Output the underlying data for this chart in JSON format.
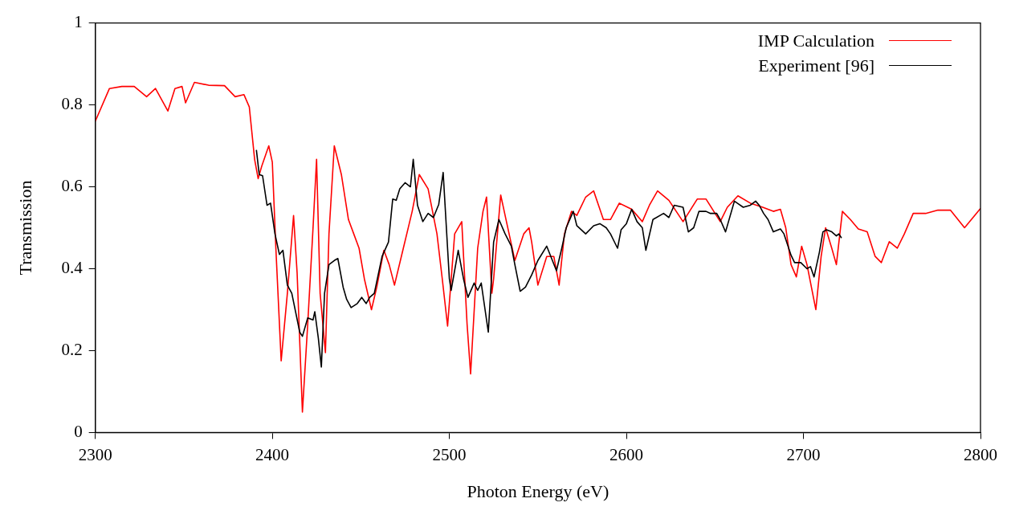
{
  "chart_data": {
    "type": "line",
    "xlabel": "Photon Energy (eV)",
    "ylabel": "Transmission",
    "xlim": [
      2300,
      2800
    ],
    "ylim": [
      0,
      1
    ],
    "xticks": [
      2300,
      2400,
      2500,
      2600,
      2700,
      2800
    ],
    "yticks": [
      0,
      0.2,
      0.4,
      0.6,
      0.8,
      1
    ],
    "grid": false,
    "legend": "top right",
    "marker": "none",
    "line_style": "solid",
    "series": [
      {
        "name": "IMP Calculation",
        "color": "#ff0000",
        "x": [
          2300,
          2308,
          2315,
          2322,
          2329,
          2334,
          2341,
          2345,
          2349,
          2351,
          2356,
          2364,
          2373,
          2379,
          2384,
          2387,
          2390,
          2392,
          2394,
          2398,
          2400,
          2402,
          2405,
          2408.5,
          2412,
          2414,
          2417,
          2420,
          2423,
          2425,
          2427,
          2430,
          2432,
          2435,
          2439,
          2443,
          2446,
          2449,
          2452,
          2456,
          2459,
          2463,
          2466,
          2469,
          2474,
          2479,
          2483,
          2488,
          2493,
          2496,
          2499,
          2503,
          2507,
          2510,
          2512,
          2516,
          2519,
          2521,
          2524,
          2525,
          2529,
          2532,
          2537,
          2542,
          2545,
          2546.5,
          2550,
          2555,
          2559,
          2562,
          2565,
          2569,
          2572,
          2577,
          2581.5,
          2587,
          2591,
          2596,
          2603,
          2609,
          2613,
          2617.6,
          2624,
          2632,
          2640,
          2645,
          2653,
          2657,
          2663,
          2670,
          2677,
          2683,
          2687,
          2690,
          2693,
          2696,
          2699,
          2702,
          2707,
          2710,
          2712.5,
          2716,
          2718.6,
          2722,
          2726.5,
          2731,
          2736,
          2740.5,
          2744,
          2748.5,
          2753,
          2757,
          2762,
          2769,
          2776,
          2783,
          2791,
          2800
        ],
        "values": [
          0.76,
          0.84,
          0.845,
          0.845,
          0.82,
          0.84,
          0.785,
          0.84,
          0.845,
          0.805,
          0.855,
          0.848,
          0.847,
          0.82,
          0.825,
          0.795,
          0.667,
          0.62,
          0.65,
          0.7,
          0.66,
          0.45,
          0.175,
          0.34,
          0.53,
          0.39,
          0.05,
          0.265,
          0.5,
          0.667,
          0.34,
          0.195,
          0.485,
          0.7,
          0.63,
          0.52,
          0.485,
          0.45,
          0.375,
          0.3,
          0.355,
          0.445,
          0.41,
          0.36,
          0.45,
          0.54,
          0.63,
          0.595,
          0.485,
          0.375,
          0.26,
          0.485,
          0.515,
          0.265,
          0.143,
          0.45,
          0.54,
          0.575,
          0.34,
          0.375,
          0.58,
          0.52,
          0.42,
          0.485,
          0.5,
          0.465,
          0.36,
          0.43,
          0.43,
          0.36,
          0.485,
          0.54,
          0.53,
          0.575,
          0.59,
          0.52,
          0.52,
          0.56,
          0.545,
          0.515,
          0.555,
          0.59,
          0.567,
          0.515,
          0.57,
          0.57,
          0.515,
          0.55,
          0.578,
          0.56,
          0.55,
          0.54,
          0.545,
          0.5,
          0.41,
          0.38,
          0.455,
          0.41,
          0.3,
          0.43,
          0.5,
          0.45,
          0.41,
          0.54,
          0.52,
          0.497,
          0.49,
          0.43,
          0.415,
          0.466,
          0.45,
          0.485,
          0.535,
          0.535,
          0.543,
          0.543,
          0.5,
          0.547
        ]
      },
      {
        "name": "Experiment [96]",
        "color": "#000000",
        "x": [
          2391,
          2392.6,
          2394.5,
          2397,
          2399,
          2401.5,
          2404,
          2406,
          2408.5,
          2411,
          2415.5,
          2417,
          2420,
          2423,
          2424,
          2426,
          2427.7,
          2429.5,
          2432,
          2435,
          2437,
          2440,
          2442,
          2444.5,
          2448,
          2450.5,
          2453,
          2455,
          2457.6,
          2462,
          2465.6,
          2468,
          2470,
          2472,
          2475,
          2478,
          2479.6,
          2482,
          2485,
          2488,
          2491,
          2494,
          2496.5,
          2500,
          2501,
          2505,
          2508,
          2510.5,
          2514,
          2516,
          2518,
          2522,
          2525,
          2528,
          2531.5,
          2535,
          2537,
          2540,
          2543,
          2546.5,
          2550,
          2555,
          2560.5,
          2563.5,
          2566,
          2570,
          2572,
          2577,
          2581.5,
          2585,
          2588.6,
          2591,
          2595,
          2597,
          2600,
          2603,
          2606,
          2609,
          2611,
          2615,
          2621,
          2624,
          2627,
          2632,
          2635,
          2638,
          2641,
          2645,
          2647.5,
          2651,
          2653,
          2656,
          2661,
          2666,
          2670,
          2673,
          2675,
          2677.5,
          2680,
          2683,
          2687,
          2689,
          2693,
          2695,
          2698.5,
          2702,
          2704,
          2706,
          2709,
          2711,
          2713,
          2716,
          2718.6,
          2720,
          2721.5
        ],
        "values": [
          0.69,
          0.63,
          0.627,
          0.555,
          0.56,
          0.485,
          0.435,
          0.445,
          0.36,
          0.34,
          0.245,
          0.235,
          0.28,
          0.275,
          0.295,
          0.23,
          0.16,
          0.34,
          0.41,
          0.42,
          0.425,
          0.355,
          0.325,
          0.305,
          0.315,
          0.33,
          0.315,
          0.33,
          0.34,
          0.43,
          0.465,
          0.57,
          0.567,
          0.595,
          0.61,
          0.6,
          0.667,
          0.555,
          0.515,
          0.535,
          0.525,
          0.557,
          0.635,
          0.375,
          0.347,
          0.445,
          0.375,
          0.33,
          0.365,
          0.347,
          0.365,
          0.245,
          0.465,
          0.52,
          0.485,
          0.455,
          0.41,
          0.345,
          0.355,
          0.385,
          0.42,
          0.455,
          0.395,
          0.45,
          0.5,
          0.54,
          0.505,
          0.485,
          0.505,
          0.51,
          0.5,
          0.485,
          0.45,
          0.495,
          0.51,
          0.545,
          0.515,
          0.5,
          0.445,
          0.52,
          0.535,
          0.525,
          0.555,
          0.55,
          0.49,
          0.5,
          0.54,
          0.54,
          0.535,
          0.535,
          0.52,
          0.49,
          0.565,
          0.55,
          0.555,
          0.565,
          0.555,
          0.535,
          0.52,
          0.49,
          0.497,
          0.485,
          0.433,
          0.415,
          0.415,
          0.4,
          0.405,
          0.38,
          0.44,
          0.49,
          0.495,
          0.49,
          0.48,
          0.485,
          0.475
        ]
      }
    ]
  }
}
